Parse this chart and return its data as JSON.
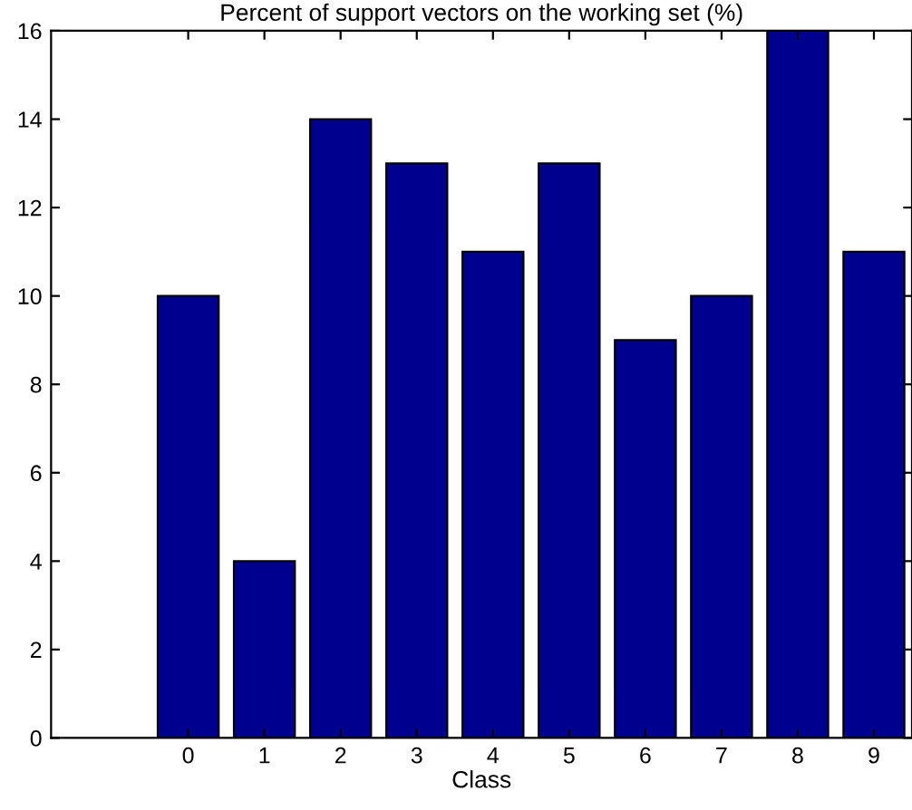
{
  "chart_data": {
    "type": "bar",
    "title": "Percent of support vectors on the working set (%)",
    "xlabel": "Class",
    "x": [
      0,
      1,
      2,
      3,
      4,
      5,
      6,
      7,
      8,
      9
    ],
    "values": [
      10,
      4,
      14,
      13,
      11,
      13,
      9,
      10,
      16,
      11
    ],
    "color": "#00008f",
    "xlim": [
      -1.8,
      9.5
    ],
    "xticks": [
      0,
      1,
      2,
      3,
      4,
      5,
      6,
      7,
      8,
      9
    ],
    "ylim": [
      0,
      16
    ],
    "yticks": [
      0,
      2,
      4,
      6,
      8,
      10,
      12,
      14,
      16
    ],
    "grid": false,
    "legend": false
  }
}
